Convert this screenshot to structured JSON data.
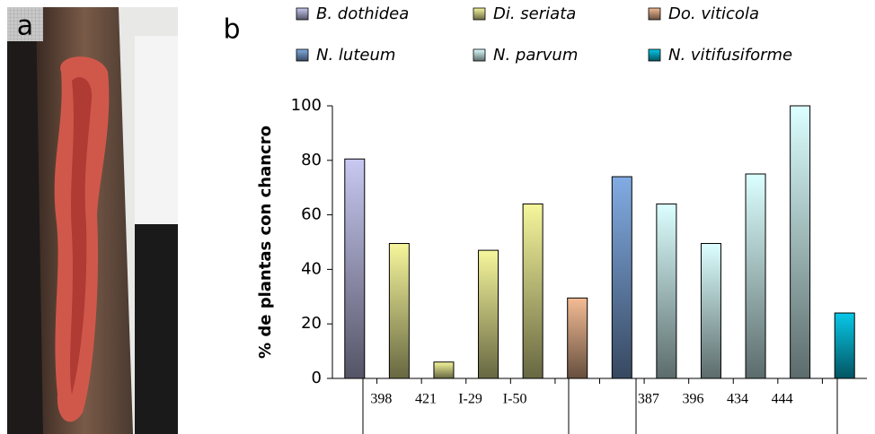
{
  "photo": {
    "label": "a"
  },
  "chart_data": {
    "type": "bar",
    "panel_label": "b",
    "y_label": "% de plantas con chancro",
    "categories": [
      null,
      "398",
      "421",
      "I-29",
      "I-50",
      null,
      null,
      "387",
      "396",
      "434",
      "444",
      null
    ],
    "series": [
      {
        "name": "B. dothidea",
        "color": "#c8c8f2",
        "values": [
          80.5,
          null,
          null,
          null,
          null,
          null,
          null,
          null,
          null,
          null,
          null,
          null
        ]
      },
      {
        "name": "Di. seriata",
        "color": "#f6f69c",
        "values": [
          null,
          49.5,
          6,
          47,
          64,
          null,
          null,
          null,
          null,
          null,
          null,
          null
        ]
      },
      {
        "name": "Do. viticola",
        "color": "#f4bc94",
        "values": [
          null,
          null,
          null,
          null,
          null,
          29.5,
          null,
          null,
          null,
          null,
          null,
          null
        ]
      },
      {
        "name": "N. luteum",
        "color": "#82ace4",
        "values": [
          null,
          null,
          null,
          null,
          null,
          null,
          74,
          null,
          null,
          null,
          null,
          null
        ]
      },
      {
        "name": "N. parvum",
        "color": "#dcffff",
        "values": [
          null,
          null,
          null,
          null,
          null,
          null,
          null,
          64,
          49.5,
          75,
          100,
          null
        ]
      },
      {
        "name": "N. vitifusiforme",
        "color": "#08c8e8",
        "values": [
          null,
          null,
          null,
          null,
          null,
          null,
          null,
          null,
          null,
          null,
          null,
          24
        ]
      }
    ],
    "ylim": [
      0,
      100
    ],
    "yticks": [
      0,
      20,
      40,
      60,
      80,
      100
    ],
    "grid": false
  }
}
